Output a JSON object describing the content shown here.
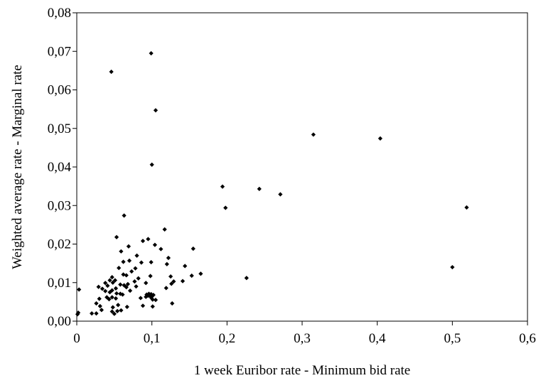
{
  "chart_data": {
    "type": "scatter",
    "xlabel": "1 week Euribor rate - Minimum bid rate",
    "ylabel": "Weighted average rate - Marginal rate",
    "xlim": [
      0,
      0.6
    ],
    "ylim": [
      0,
      0.08
    ],
    "x_ticks": [
      0,
      0.1,
      0.2,
      0.3,
      0.4,
      0.5,
      0.6
    ],
    "y_ticks": [
      0,
      0.01,
      0.02,
      0.03,
      0.04,
      0.05,
      0.06,
      0.07,
      0.08
    ],
    "x_tick_labels": [
      "0",
      "0,1",
      "0,2",
      "0,3",
      "0,4",
      "0,5",
      "0,6"
    ],
    "y_tick_labels": [
      "0,00",
      "0,01",
      "0,02",
      "0,03",
      "0,04",
      "0,05",
      "0,06",
      "0,07",
      "0,08"
    ],
    "grid": false,
    "legend": "none",
    "marker_color": "#000000",
    "series": [
      {
        "points": [
          [
            0.099,
            0.0695
          ],
          [
            0.046,
            0.0647
          ],
          [
            0.105,
            0.0547
          ],
          [
            0.315,
            0.0484
          ],
          [
            0.404,
            0.0474
          ],
          [
            0.1,
            0.0406
          ],
          [
            0.194,
            0.0349
          ],
          [
            0.243,
            0.0343
          ],
          [
            0.271,
            0.0329
          ],
          [
            0.519,
            0.0295
          ],
          [
            0.198,
            0.0294
          ],
          [
            0.063,
            0.0274
          ],
          [
            0.117,
            0.0238
          ],
          [
            0.053,
            0.0218
          ],
          [
            0.095,
            0.0213
          ],
          [
            0.088,
            0.0208
          ],
          [
            0.104,
            0.0198
          ],
          [
            0.069,
            0.0194
          ],
          [
            0.155,
            0.0188
          ],
          [
            0.112,
            0.0187
          ],
          [
            0.059,
            0.0181
          ],
          [
            0.08,
            0.017
          ],
          [
            0.122,
            0.0164
          ],
          [
            0.07,
            0.0157
          ],
          [
            0.062,
            0.0154
          ],
          [
            0.099,
            0.0153
          ],
          [
            0.086,
            0.0152
          ],
          [
            0.12,
            0.0148
          ],
          [
            0.144,
            0.0143
          ],
          [
            0.056,
            0.0138
          ],
          [
            0.078,
            0.0137
          ],
          [
            0.073,
            0.0129
          ],
          [
            0.165,
            0.0123
          ],
          [
            0.062,
            0.0121
          ],
          [
            0.066,
            0.0119
          ],
          [
            0.153,
            0.0118
          ],
          [
            0.098,
            0.0117
          ],
          [
            0.125,
            0.0116
          ],
          [
            0.047,
            0.0114
          ],
          [
            0.226,
            0.0112
          ],
          [
            0.082,
            0.0111
          ],
          [
            0.044,
            0.0106
          ],
          [
            0.051,
            0.0106
          ],
          [
            0.141,
            0.0104
          ],
          [
            0.129,
            0.0103
          ],
          [
            0.077,
            0.0103
          ],
          [
            0.048,
            0.01
          ],
          [
            0.092,
            0.0099
          ],
          [
            0.038,
            0.0099
          ],
          [
            0.126,
            0.0097
          ],
          [
            0.068,
            0.0096
          ],
          [
            0.058,
            0.0095
          ],
          [
            0.063,
            0.0093
          ],
          [
            0.041,
            0.0092
          ],
          [
            0.079,
            0.009
          ],
          [
            0.029,
            0.0089
          ],
          [
            0.066,
            0.0088
          ],
          [
            0.119,
            0.0086
          ],
          [
            0.052,
            0.0085
          ],
          [
            0.034,
            0.0084
          ],
          [
            0.003,
            0.0082
          ],
          [
            0.047,
            0.008
          ],
          [
            0.071,
            0.0079
          ],
          [
            0.038,
            0.0078
          ],
          [
            0.044,
            0.0075
          ],
          [
            0.053,
            0.0072
          ],
          [
            0.058,
            0.0071
          ],
          [
            0.096,
            0.0071
          ],
          [
            0.099,
            0.007
          ],
          [
            0.093,
            0.0069
          ],
          [
            0.061,
            0.0069
          ],
          [
            0.102,
            0.0068
          ],
          [
            0.095,
            0.0066
          ],
          [
            0.098,
            0.0065
          ],
          [
            0.1,
            0.0064
          ],
          [
            0.092,
            0.0063
          ],
          [
            0.04,
            0.0062
          ],
          [
            0.047,
            0.0062
          ],
          [
            0.099,
            0.0061
          ],
          [
            0.085,
            0.006
          ],
          [
            0.052,
            0.0059
          ],
          [
            0.03,
            0.0058
          ],
          [
            0.043,
            0.0057
          ],
          [
            0.101,
            0.0056
          ],
          [
            0.105,
            0.0055
          ],
          [
            0.026,
            0.0046
          ],
          [
            0.127,
            0.0046
          ],
          [
            0.055,
            0.0042
          ],
          [
            0.088,
            0.004
          ],
          [
            0.031,
            0.0039
          ],
          [
            0.101,
            0.0038
          ],
          [
            0.067,
            0.0037
          ],
          [
            0.048,
            0.0036
          ],
          [
            0.033,
            0.0029
          ],
          [
            0.059,
            0.0028
          ],
          [
            0.054,
            0.0026
          ],
          [
            0.047,
            0.0025
          ],
          [
            0.002,
            0.0022
          ],
          [
            0.026,
            0.002
          ],
          [
            0.02,
            0.002
          ],
          [
            0.05,
            0.0019
          ],
          [
            0.001,
            0.0018
          ],
          [
            0.5,
            0.014
          ]
        ]
      }
    ]
  }
}
